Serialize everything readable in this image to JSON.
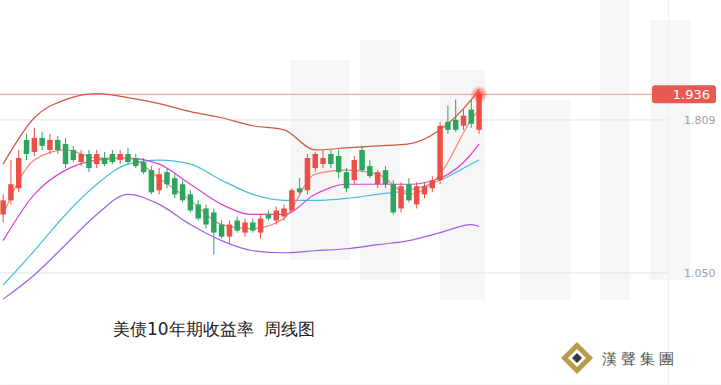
{
  "chart_data": {
    "type": "candlestick",
    "title": "美债10年期收益率  周线图",
    "source": "漢聲集團",
    "xlim": [
      -0.4,
      92
    ],
    "ylim": [
      0.494,
      2.404
    ],
    "yticks": [
      {
        "value": 1.05,
        "label": "1.050"
      },
      1.809
    ],
    "grid": true,
    "tick_labels": "y",
    "annotations": [
      {
        "y": 1.936,
        "text": "1.936"
      }
    ],
    "series": [
      {
        "type": "candlestick",
        "x": [
          0,
          1,
          2,
          3,
          4,
          5,
          6,
          7,
          8,
          9,
          10,
          11,
          12,
          13,
          14,
          15,
          16,
          17,
          18,
          19,
          20,
          21,
          22,
          23,
          24,
          25,
          26,
          27,
          28,
          29,
          30,
          31,
          32,
          33,
          34,
          35,
          36,
          37,
          38,
          39,
          40,
          41,
          42,
          43,
          44,
          45,
          46,
          47,
          48,
          49,
          50,
          51,
          52,
          53,
          54,
          55,
          56,
          57,
          58,
          59,
          60,
          61
        ],
        "open": [
          1.34,
          1.41,
          1.47,
          1.71,
          1.65,
          1.72,
          1.66,
          1.71,
          1.69,
          1.66,
          1.6,
          1.64,
          1.59,
          1.62,
          1.64,
          1.61,
          1.64,
          1.62,
          1.6,
          1.56,
          1.46,
          1.55,
          1.52,
          1.49,
          1.44,
          1.39,
          1.37,
          1.35,
          1.29,
          1.23,
          1.31,
          1.25,
          1.3,
          1.25,
          1.34,
          1.31,
          1.33,
          1.36,
          1.47,
          1.46,
          1.57,
          1.59,
          1.64,
          1.63,
          1.55,
          1.51,
          1.66,
          1.58,
          1.49,
          1.56,
          1.49,
          1.37,
          1.49,
          1.39,
          1.44,
          1.47,
          1.51,
          1.8,
          1.81,
          1.78,
          1.86,
          1.76
        ],
        "high": [
          1.44,
          1.61,
          1.66,
          1.74,
          1.77,
          1.75,
          1.74,
          1.73,
          1.72,
          1.68,
          1.66,
          1.66,
          1.66,
          1.65,
          1.66,
          1.66,
          1.67,
          1.64,
          1.62,
          1.58,
          1.57,
          1.57,
          1.54,
          1.51,
          1.46,
          1.41,
          1.39,
          1.37,
          1.31,
          1.31,
          1.33,
          1.32,
          1.32,
          1.34,
          1.36,
          1.38,
          1.39,
          1.47,
          1.52,
          1.64,
          1.65,
          1.66,
          1.66,
          1.66,
          1.57,
          1.63,
          1.68,
          1.61,
          1.56,
          1.58,
          1.51,
          1.5,
          1.52,
          1.5,
          1.5,
          1.53,
          1.8,
          1.88,
          1.91,
          1.86,
          1.91,
          1.95
        ],
        "low": [
          1.3,
          1.39,
          1.45,
          1.61,
          1.63,
          1.66,
          1.64,
          1.64,
          1.57,
          1.6,
          1.58,
          1.55,
          1.57,
          1.58,
          1.59,
          1.59,
          1.59,
          1.57,
          1.54,
          1.44,
          1.44,
          1.47,
          1.42,
          1.4,
          1.35,
          1.31,
          1.27,
          1.14,
          1.22,
          1.2,
          1.25,
          1.23,
          1.25,
          1.22,
          1.31,
          1.29,
          1.31,
          1.35,
          1.44,
          1.44,
          1.55,
          1.57,
          1.57,
          1.52,
          1.45,
          1.49,
          1.55,
          1.52,
          1.47,
          1.47,
          1.34,
          1.35,
          1.4,
          1.37,
          1.42,
          1.45,
          1.49,
          1.74,
          1.75,
          1.76,
          1.77,
          1.74
        ],
        "close": [
          1.41,
          1.49,
          1.62,
          1.64,
          1.72,
          1.68,
          1.71,
          1.66,
          1.59,
          1.61,
          1.64,
          1.57,
          1.64,
          1.59,
          1.6,
          1.64,
          1.6,
          1.58,
          1.55,
          1.45,
          1.54,
          1.49,
          1.44,
          1.41,
          1.36,
          1.32,
          1.29,
          1.25,
          1.23,
          1.29,
          1.26,
          1.3,
          1.26,
          1.32,
          1.32,
          1.36,
          1.37,
          1.46,
          1.45,
          1.62,
          1.64,
          1.62,
          1.59,
          1.55,
          1.47,
          1.61,
          1.56,
          1.53,
          1.55,
          1.49,
          1.35,
          1.48,
          1.41,
          1.48,
          1.48,
          1.51,
          1.78,
          1.76,
          1.76,
          1.83,
          1.79,
          1.936
        ]
      },
      {
        "type": "line",
        "color": "#d2553f",
        "x": [
          0,
          4,
          8,
          12,
          16,
          20,
          24,
          28,
          32,
          36,
          40,
          44,
          48,
          52,
          56,
          60,
          61
        ],
        "values": [
          1.59,
          1.82,
          1.91,
          1.94,
          1.92,
          1.89,
          1.85,
          1.82,
          1.78,
          1.76,
          1.66,
          1.67,
          1.68,
          1.69,
          1.76,
          1.91,
          1.96
        ]
      },
      {
        "type": "line",
        "color": "#a45ee0",
        "x": [
          0,
          4,
          8,
          12,
          16,
          20,
          24,
          28,
          32,
          36,
          40,
          44,
          48,
          52,
          56,
          60,
          61
        ],
        "values": [
          0.92,
          1.04,
          1.19,
          1.34,
          1.44,
          1.39,
          1.29,
          1.21,
          1.16,
          1.15,
          1.16,
          1.17,
          1.19,
          1.21,
          1.25,
          1.29,
          1.28
        ]
      },
      {
        "type": "line",
        "color": "#45c0dc",
        "x": [
          0,
          4,
          8,
          12,
          16,
          20,
          24,
          28,
          32,
          36,
          40,
          44,
          48,
          52,
          56,
          60,
          61
        ],
        "values": [
          0.99,
          1.16,
          1.34,
          1.49,
          1.59,
          1.61,
          1.59,
          1.51,
          1.44,
          1.41,
          1.41,
          1.42,
          1.44,
          1.46,
          1.51,
          1.59,
          1.61
        ]
      },
      {
        "type": "line",
        "color": "#e040d8",
        "x": [
          0,
          4,
          8,
          12,
          16,
          20,
          24,
          28,
          32,
          36,
          40,
          44,
          48,
          52,
          56,
          60,
          61
        ],
        "values": [
          1.21,
          1.44,
          1.56,
          1.61,
          1.62,
          1.59,
          1.49,
          1.39,
          1.34,
          1.34,
          1.44,
          1.49,
          1.49,
          1.49,
          1.52,
          1.64,
          1.69
        ]
      },
      {
        "type": "line",
        "color": "#f2817a",
        "x": [
          0,
          4,
          8,
          12,
          16,
          20,
          24,
          28,
          32,
          36,
          40,
          44,
          48,
          52,
          56,
          60,
          61
        ],
        "values": [
          1.34,
          1.61,
          1.66,
          1.62,
          1.62,
          1.52,
          1.41,
          1.29,
          1.27,
          1.32,
          1.54,
          1.56,
          1.54,
          1.44,
          1.54,
          1.81,
          1.86
        ]
      }
    ]
  }
}
